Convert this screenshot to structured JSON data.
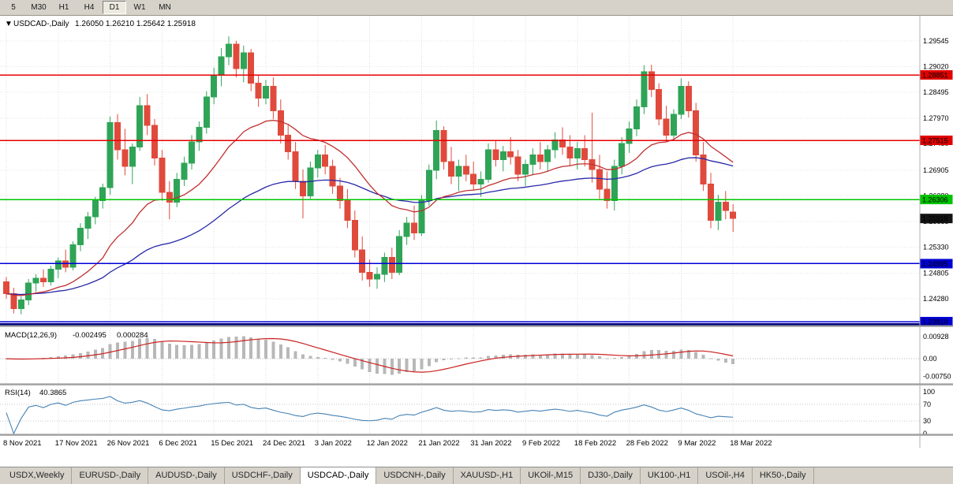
{
  "toolbar": {
    "timeframes": [
      {
        "label": "5",
        "active": false
      },
      {
        "label": "M30",
        "active": false
      },
      {
        "label": "H1",
        "active": false
      },
      {
        "label": "H4",
        "active": false
      },
      {
        "label": "D1",
        "active": true
      },
      {
        "label": "W1",
        "active": false
      },
      {
        "label": "MN",
        "active": false
      }
    ]
  },
  "chart": {
    "header_symbol": "USDCAD-,Daily",
    "header_ohlc": "1.26050 1.26210 1.25642 1.25918",
    "icons": {
      "collapse": "▼"
    }
  },
  "chart_data": {
    "type": "candlestick",
    "symbol": "USDCAD-,Daily",
    "candles": [
      [
        1.2462,
        1.2472,
        1.2428,
        1.2438
      ],
      [
        1.2438,
        1.245,
        1.2398,
        1.2408
      ],
      [
        1.2408,
        1.2432,
        1.2396,
        1.2425
      ],
      [
        1.2425,
        1.2468,
        1.2415,
        1.246
      ],
      [
        1.246,
        1.2478,
        1.2442,
        1.247
      ],
      [
        1.247,
        1.2488,
        1.2452,
        1.2462
      ],
      [
        1.2462,
        1.2495,
        1.2455,
        1.2488
      ],
      [
        1.2488,
        1.2512,
        1.247,
        1.2505
      ],
      [
        1.2505,
        1.2528,
        1.2482,
        1.2492
      ],
      [
        1.2492,
        1.2545,
        1.2486,
        1.2538
      ],
      [
        1.2538,
        1.2582,
        1.2525,
        1.2572
      ],
      [
        1.2572,
        1.2605,
        1.255,
        1.2595
      ],
      [
        1.2595,
        1.2636,
        1.258,
        1.2628
      ],
      [
        1.2628,
        1.2663,
        1.2612,
        1.2655
      ],
      [
        1.2655,
        1.28,
        1.264,
        1.2788
      ],
      [
        1.2788,
        1.2805,
        1.2712,
        1.2732
      ],
      [
        1.2732,
        1.2775,
        1.268,
        1.2698
      ],
      [
        1.2698,
        1.2745,
        1.2662,
        1.2738
      ],
      [
        1.2738,
        1.284,
        1.273,
        1.2822
      ],
      [
        1.2822,
        1.2846,
        1.2762,
        1.2782
      ],
      [
        1.2782,
        1.2795,
        1.27,
        1.2715
      ],
      [
        1.2715,
        1.2732,
        1.2628,
        1.2645
      ],
      [
        1.2645,
        1.2668,
        1.259,
        1.2625
      ],
      [
        1.2625,
        1.2685,
        1.2615,
        1.2672
      ],
      [
        1.2672,
        1.2718,
        1.2658,
        1.2705
      ],
      [
        1.2705,
        1.2762,
        1.2692,
        1.2748
      ],
      [
        1.2748,
        1.279,
        1.273,
        1.2778
      ],
      [
        1.2778,
        1.2852,
        1.2765,
        1.284
      ],
      [
        1.284,
        1.29,
        1.2825,
        1.2885
      ],
      [
        1.2885,
        1.294,
        1.2862,
        1.2922
      ],
      [
        1.2922,
        1.2964,
        1.2905,
        1.2948
      ],
      [
        1.2948,
        1.2955,
        1.288,
        1.2898
      ],
      [
        1.2898,
        1.2945,
        1.287,
        1.293
      ],
      [
        1.293,
        1.2938,
        1.2852,
        1.2868
      ],
      [
        1.2868,
        1.2885,
        1.282,
        1.2838
      ],
      [
        1.2838,
        1.2875,
        1.2825,
        1.2862
      ],
      [
        1.2862,
        1.288,
        1.2795,
        1.2812
      ],
      [
        1.2812,
        1.2835,
        1.2745,
        1.2762
      ],
      [
        1.2762,
        1.2785,
        1.2712,
        1.2728
      ],
      [
        1.2728,
        1.2748,
        1.2652,
        1.2668
      ],
      [
        1.2668,
        1.2692,
        1.2592,
        1.2638
      ],
      [
        1.2638,
        1.2708,
        1.2632,
        1.2695
      ],
      [
        1.2695,
        1.2732,
        1.2675,
        1.2722
      ],
      [
        1.2722,
        1.2742,
        1.2682,
        1.2698
      ],
      [
        1.2698,
        1.2712,
        1.2642,
        1.2658
      ],
      [
        1.2658,
        1.2675,
        1.2612,
        1.2628
      ],
      [
        1.2628,
        1.2652,
        1.2572,
        1.2588
      ],
      [
        1.2588,
        1.2608,
        1.2512,
        1.2528
      ],
      [
        1.2528,
        1.2555,
        1.2465,
        1.2482
      ],
      [
        1.2482,
        1.2508,
        1.2452,
        1.2468
      ],
      [
        1.2468,
        1.2492,
        1.2448,
        1.2478
      ],
      [
        1.2478,
        1.2522,
        1.2462,
        1.2512
      ],
      [
        1.2512,
        1.2532,
        1.2468,
        1.2482
      ],
      [
        1.2482,
        1.2568,
        1.2476,
        1.2555
      ],
      [
        1.2555,
        1.2595,
        1.2538,
        1.2582
      ],
      [
        1.2582,
        1.2618,
        1.2548,
        1.2562
      ],
      [
        1.2562,
        1.264,
        1.2556,
        1.2628
      ],
      [
        1.2628,
        1.2702,
        1.2618,
        1.269
      ],
      [
        1.269,
        1.2792,
        1.2672,
        1.2772
      ],
      [
        1.2772,
        1.278,
        1.2692,
        1.2708
      ],
      [
        1.2708,
        1.2738,
        1.2662,
        1.2678
      ],
      [
        1.2678,
        1.2712,
        1.2648,
        1.2698
      ],
      [
        1.2698,
        1.2722,
        1.2668,
        1.2682
      ],
      [
        1.2682,
        1.2708,
        1.265,
        1.2662
      ],
      [
        1.2662,
        1.2688,
        1.2636,
        1.2672
      ],
      [
        1.2672,
        1.2745,
        1.2665,
        1.2732
      ],
      [
        1.2732,
        1.2752,
        1.2698,
        1.2712
      ],
      [
        1.2712,
        1.274,
        1.2688,
        1.2728
      ],
      [
        1.2728,
        1.2758,
        1.2702,
        1.2718
      ],
      [
        1.2718,
        1.2732,
        1.2668,
        1.2682
      ],
      [
        1.2682,
        1.2712,
        1.2658,
        1.2702
      ],
      [
        1.2702,
        1.2735,
        1.268,
        1.2722
      ],
      [
        1.2722,
        1.2748,
        1.2692,
        1.2708
      ],
      [
        1.2708,
        1.2742,
        1.2688,
        1.2732
      ],
      [
        1.2732,
        1.2768,
        1.2715,
        1.2752
      ],
      [
        1.2752,
        1.2778,
        1.2722,
        1.2738
      ],
      [
        1.2738,
        1.2762,
        1.27,
        1.2715
      ],
      [
        1.2715,
        1.2748,
        1.2692,
        1.2735
      ],
      [
        1.2735,
        1.2762,
        1.2698,
        1.2712
      ],
      [
        1.2712,
        1.2808,
        1.2665,
        1.2692
      ],
      [
        1.2692,
        1.2722,
        1.2632,
        1.2652
      ],
      [
        1.2652,
        1.2688,
        1.2612,
        1.2628
      ],
      [
        1.2628,
        1.2712,
        1.2608,
        1.2698
      ],
      [
        1.2698,
        1.2758,
        1.2682,
        1.2745
      ],
      [
        1.2745,
        1.279,
        1.2726,
        1.2775
      ],
      [
        1.2775,
        1.2835,
        1.276,
        1.282
      ],
      [
        1.282,
        1.2905,
        1.2805,
        1.2892
      ],
      [
        1.2892,
        1.2906,
        1.284,
        1.2855
      ],
      [
        1.2855,
        1.2868,
        1.2782,
        1.2795
      ],
      [
        1.2795,
        1.2822,
        1.2748,
        1.2762
      ],
      [
        1.2762,
        1.2815,
        1.2752,
        1.2805
      ],
      [
        1.2805,
        1.2878,
        1.2795,
        1.2862
      ],
      [
        1.2862,
        1.2872,
        1.2798,
        1.2812
      ],
      [
        1.2812,
        1.2828,
        1.2708,
        1.2722
      ],
      [
        1.2722,
        1.2748,
        1.2648,
        1.2662
      ],
      [
        1.2662,
        1.2685,
        1.2572,
        1.2588
      ],
      [
        1.2588,
        1.264,
        1.2568,
        1.2625
      ],
      [
        1.2625,
        1.2648,
        1.259,
        1.2608
      ],
      [
        1.2605,
        1.2621,
        1.25642,
        1.25918
      ]
    ],
    "x_labels": [
      {
        "t": "8 Nov 2021",
        "i": 0
      },
      {
        "t": "17 Nov 2021",
        "i": 7
      },
      {
        "t": "26 Nov 2021",
        "i": 14
      },
      {
        "t": "6 Dec 2021",
        "i": 21
      },
      {
        "t": "15 Dec 2021",
        "i": 28
      },
      {
        "t": "24 Dec 2021",
        "i": 35
      },
      {
        "t": "3 Jan 2022",
        "i": 42
      },
      {
        "t": "12 Jan 2022",
        "i": 49
      },
      {
        "t": "21 Jan 2022",
        "i": 56
      },
      {
        "t": "31 Jan 2022",
        "i": 63
      },
      {
        "t": "9 Feb 2022",
        "i": 70
      },
      {
        "t": "18 Feb 2022",
        "i": 77
      },
      {
        "t": "28 Feb 2022",
        "i": 84
      },
      {
        "t": "9 Mar 2022",
        "i": 91
      },
      {
        "t": "18 Mar 2022",
        "i": 98
      }
    ],
    "y_axis_labels": [
      "1.29545",
      "1.29020",
      "1.28495",
      "1.27970",
      "1.27450",
      "1.26905",
      "1.26380",
      "1.25855",
      "1.25330",
      "1.24805",
      "1.24280"
    ],
    "price_range": {
      "top": 1.3006,
      "bottom": 1.2373
    },
    "h_lines": [
      {
        "price": 1.28851,
        "label": "1.28851",
        "color": "#e80000",
        "badge_color": "#e00000",
        "width": 1.5
      },
      {
        "price": 1.27515,
        "label": "1.27515",
        "color": "#e80000",
        "badge_color": "#e00000",
        "width": 1.5
      },
      {
        "price": 1.26306,
        "label": "1.26306",
        "color": "#00c400",
        "badge_color": "#00c400",
        "width": 1.5
      },
      {
        "price": 1.24995,
        "label": "1.24995",
        "color": "#0000d8",
        "badge_color": "#0000d0",
        "width": 1.5
      },
      {
        "price": 1.2381,
        "label": "1.23810",
        "color": "#0000d8",
        "badge_color": "#0000d0",
        "width": 1.5
      },
      {
        "price": 1.23762,
        "label": null,
        "color": "#000080",
        "width": 2.5
      }
    ],
    "current_price_badge": {
      "label": "1.25918",
      "price": 1.25918,
      "color": "#141414"
    },
    "ma_periods": {
      "fast": 21,
      "slow": 55
    },
    "indicators": {
      "macd": {
        "label": "MACD(12,26,9)",
        "value_main": "-0.002495",
        "value_signal": "0.000284",
        "fast": 12,
        "slow": 26,
        "signal": 9,
        "axis": [
          {
            "t": "0.00928",
            "v": 0.00928
          },
          {
            "t": "0.00",
            "v": 0
          },
          {
            "t": "-0.00750",
            "v": -0.0075
          }
        ]
      },
      "rsi": {
        "label": "RSI(14)",
        "value": "40.3865",
        "period": 14,
        "axis": [
          {
            "t": "100",
            "v": 100
          },
          {
            "t": "70",
            "v": 70
          },
          {
            "t": "30",
            "v": 30
          },
          {
            "t": "0",
            "v": 0
          }
        ],
        "levels": [
          70,
          30
        ]
      }
    },
    "colors": {
      "bull": "#2fa457",
      "bear": "#e04a3c",
      "ma_fast": "#c03030",
      "ma_slow": "#2828a8",
      "macd_hist": "#b8b8b8",
      "macd_signal": "#cc2020",
      "rsi_line": "#4682b4",
      "grid": "#dcdcdc"
    }
  },
  "tabs": [
    {
      "label": "USDX,Weekly",
      "active": false
    },
    {
      "label": "EURUSD-,Daily",
      "active": false
    },
    {
      "label": "AUDUSD-,Daily",
      "active": false
    },
    {
      "label": "USDCHF-,Daily",
      "active": false
    },
    {
      "label": "USDCAD-,Daily",
      "active": true
    },
    {
      "label": "USDCNH-,Daily",
      "active": false
    },
    {
      "label": "XAUUSD-,H1",
      "active": false
    },
    {
      "label": "UKOil-,M15",
      "active": false
    },
    {
      "label": "DJ30-,Daily",
      "active": false
    },
    {
      "label": "UK100-,H1",
      "active": false
    },
    {
      "label": "USOil-,H4",
      "active": false
    },
    {
      "label": "HK50-,Daily",
      "active": false
    }
  ]
}
